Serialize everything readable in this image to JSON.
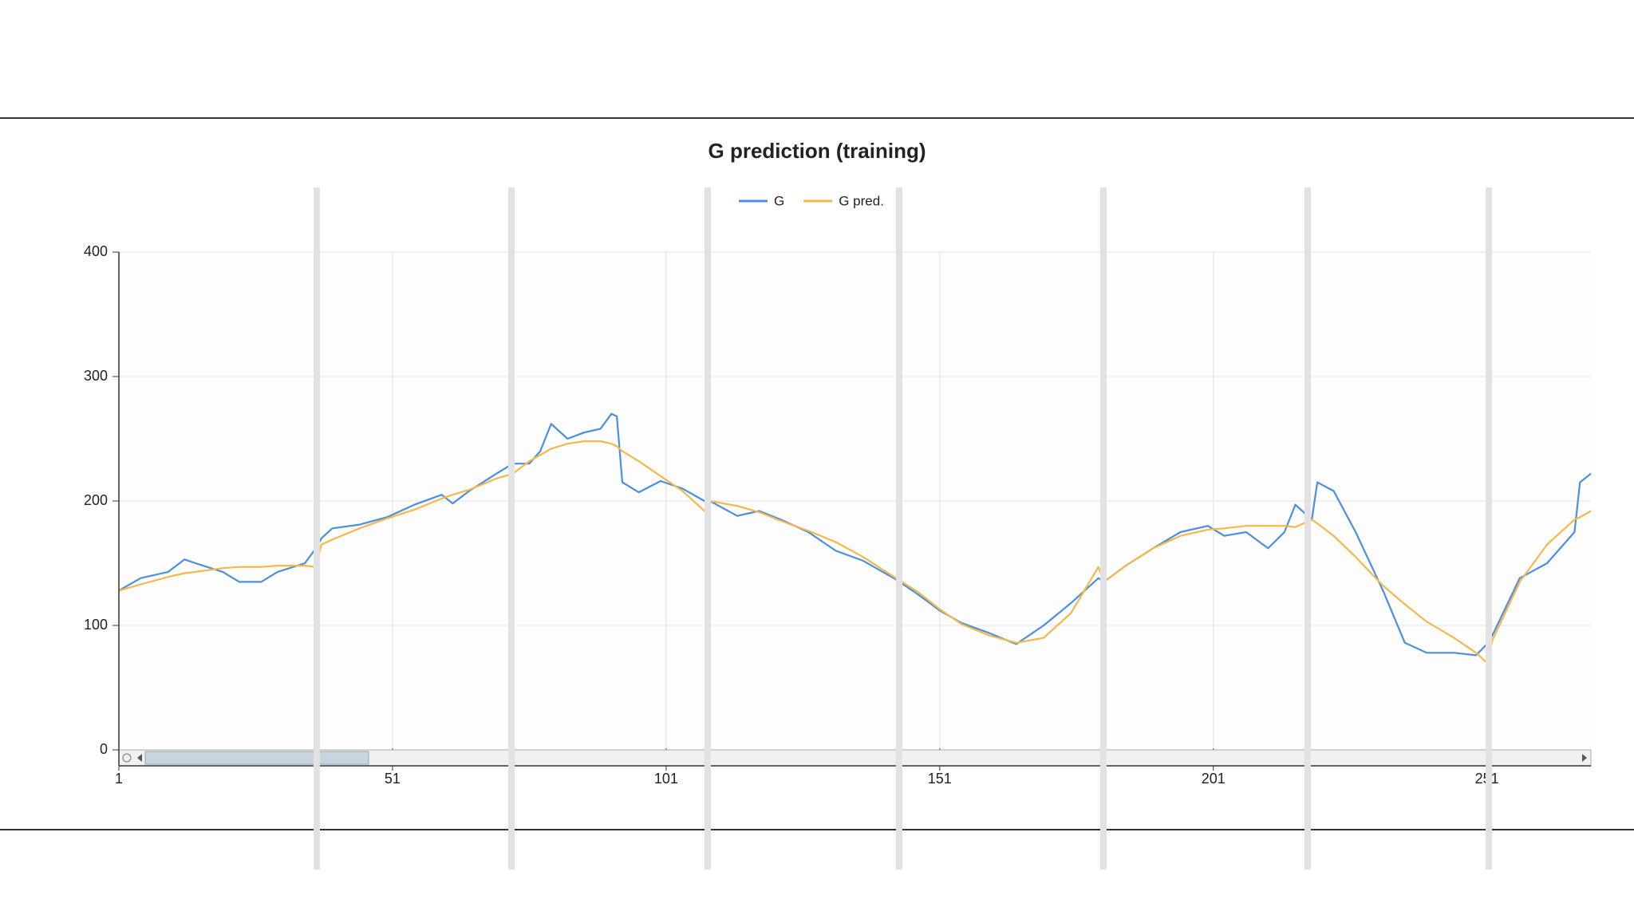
{
  "chart_data": {
    "type": "line",
    "title": "G prediction (training)",
    "x": [
      1,
      5,
      10,
      13,
      15,
      20,
      23,
      27,
      30,
      35,
      37,
      38,
      40,
      45,
      50,
      55,
      60,
      62,
      65,
      70,
      73,
      76,
      78,
      80,
      83,
      86,
      89,
      91,
      92,
      93,
      96,
      100,
      104,
      108,
      109,
      114,
      118,
      122,
      127,
      132,
      137,
      143,
      147,
      151,
      155,
      160,
      165,
      170,
      175,
      180,
      181,
      185,
      190,
      195,
      200,
      203,
      207,
      211,
      214,
      216,
      219,
      220,
      223,
      227,
      232,
      236,
      240,
      245,
      249,
      251,
      252,
      257,
      262,
      267,
      268,
      270
    ],
    "series": [
      {
        "name": "G",
        "color": "#4a8fe0",
        "values": [
          128,
          138,
          143,
          153,
          150,
          143,
          135,
          135,
          143,
          150,
          162,
          170,
          178,
          181,
          187,
          197,
          205,
          198,
          208,
          222,
          230,
          230,
          240,
          262,
          250,
          255,
          258,
          270,
          268,
          215,
          207,
          216,
          210,
          200,
          200,
          188,
          192,
          185,
          175,
          160,
          152,
          137,
          125,
          112,
          102,
          94,
          85,
          100,
          118,
          138,
          135,
          148,
          162,
          175,
          180,
          172,
          175,
          162,
          175,
          197,
          185,
          215,
          208,
          175,
          128,
          86,
          78,
          78,
          76,
          85,
          92,
          138,
          150,
          175,
          215,
          222
        ]
      },
      {
        "name": "G pred.",
        "color": "#f5b848",
        "values": [
          128,
          133,
          139,
          142,
          143,
          146,
          147,
          147,
          148,
          148,
          147,
          165,
          169,
          178,
          186,
          193,
          202,
          205,
          209,
          218,
          222,
          232,
          237,
          242,
          246,
          248,
          248,
          246,
          244,
          240,
          232,
          220,
          208,
          192,
          200,
          196,
          191,
          184,
          176,
          167,
          155,
          138,
          127,
          113,
          101,
          92,
          86,
          90,
          110,
          147,
          135,
          148,
          162,
          172,
          177,
          178,
          180,
          180,
          180,
          179,
          185,
          182,
          172,
          155,
          132,
          117,
          103,
          90,
          78,
          70,
          88,
          135,
          165,
          185,
          187,
          192
        ]
      }
    ],
    "xlim": [
      1,
      270
    ],
    "xticks": [
      1,
      51,
      101,
      151,
      201,
      251
    ],
    "ylim": [
      0,
      400
    ],
    "yticks": [
      0,
      100,
      200,
      300,
      400
    ],
    "grid": true
  }
}
